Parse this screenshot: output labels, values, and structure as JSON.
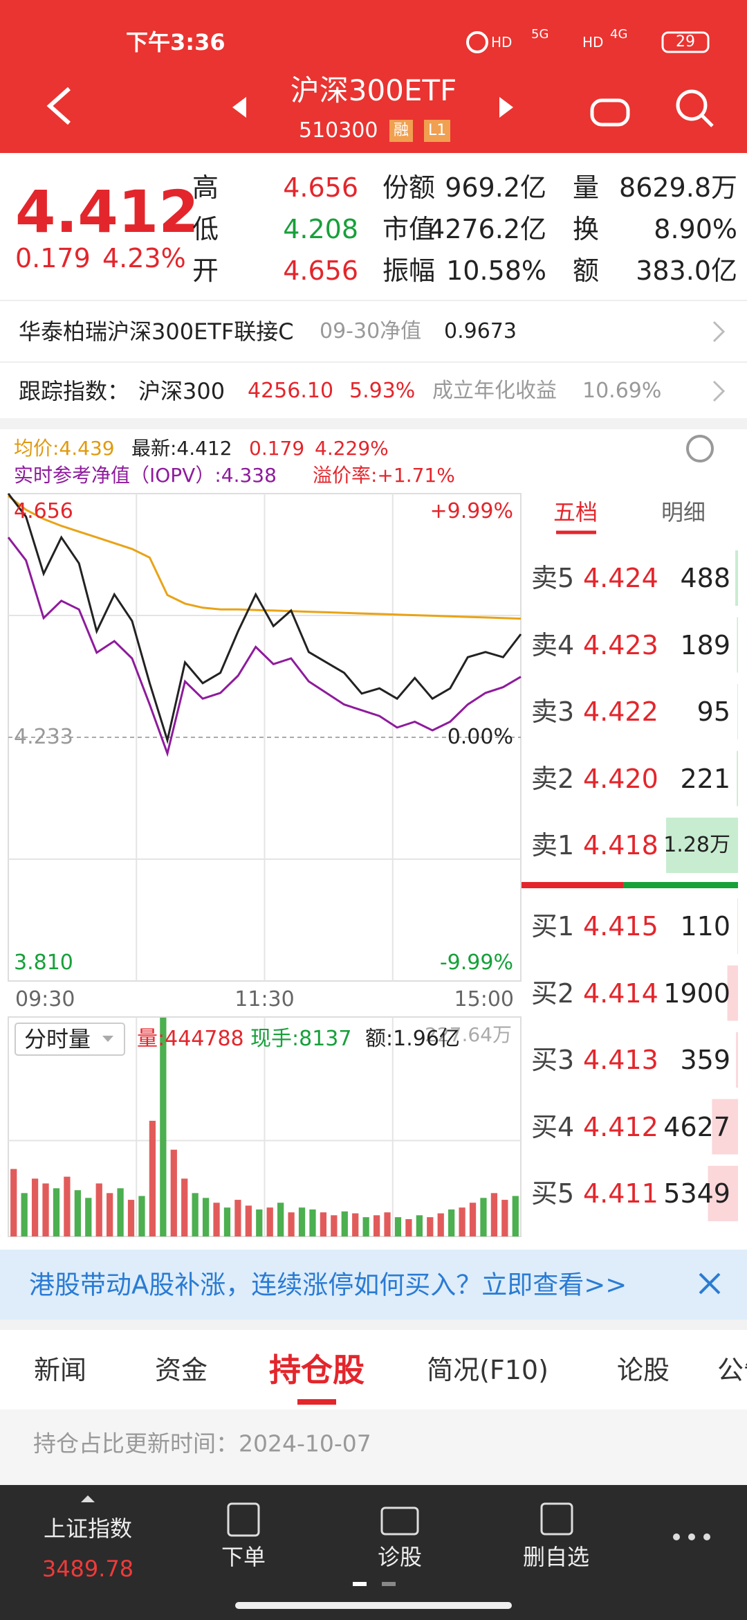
{
  "status_bar": {
    "time": "下午3:36",
    "hd": "HD",
    "net1": "5G",
    "net2": "4G",
    "battery": "29"
  },
  "header": {
    "title": "沪深300ETF",
    "code": "510300",
    "badges": [
      "融",
      "L1"
    ]
  },
  "quote": {
    "price": "4.412",
    "change": "0.179",
    "change_pct": "4.23%",
    "stats": [
      [
        {
          "label": "高",
          "value": "4.656",
          "color": "#e3262c"
        },
        {
          "label": "份额",
          "value": "969.2亿"
        },
        {
          "label": "量",
          "value": "8629.8万"
        }
      ],
      [
        {
          "label": "低",
          "value": "4.208",
          "color": "#17a03a"
        },
        {
          "label": "市值",
          "value": "4276.2亿"
        },
        {
          "label": "换",
          "value": "8.90%"
        }
      ],
      [
        {
          "label": "开",
          "value": "4.656",
          "color": "#e3262c"
        },
        {
          "label": "振幅",
          "value": "10.58%"
        },
        {
          "label": "额",
          "value": "383.0亿"
        }
      ]
    ]
  },
  "fund_row": {
    "name": "华泰柏瑞沪深300ETF联接C",
    "nav_label": "09-30净值",
    "nav": "0.9673"
  },
  "tracking_row": {
    "label": "跟踪指数：",
    "index": "沪深300",
    "index_value": "4256.10",
    "index_change": "5.93%",
    "annual_label": "成立年化收益",
    "annual": "10.69%"
  },
  "chart_info": {
    "avg": "均价:4.439",
    "latest": "最新:4.412",
    "change": "0.179",
    "pct": "4.229%",
    "iopv": "实时参考净值（IOPV）:4.338",
    "premium": "溢价率:+1.71%"
  },
  "chart_data": [
    {
      "type": "line",
      "ylim": [
        3.81,
        4.656
      ],
      "yticks": [
        4.656,
        4.233,
        {
          "value": 3.81,
          "label": "3.810"
        }
      ],
      "y2lim": [
        -9.99,
        9.99
      ],
      "y2ticks": [
        {
          "value": 9.99,
          "label": "+9.99%"
        },
        {
          "value": 0,
          "label": "0.00%"
        },
        {
          "value": -9.99,
          "label": "-9.99%"
        }
      ],
      "xtick_labels": [
        "09:30",
        "11:30",
        "15:00"
      ],
      "series": [
        {
          "color": "#e8a317",
          "values": [
            4.652,
            4.628,
            4.612,
            4.6,
            4.59,
            4.58,
            4.57,
            4.56,
            4.545,
            4.48,
            4.465,
            4.458,
            4.455,
            4.455,
            4.454,
            4.453,
            4.452,
            4.451,
            4.45,
            4.449,
            4.448,
            4.447,
            4.446,
            4.445,
            4.444,
            4.443,
            4.442,
            4.441,
            4.44,
            4.439
          ]
        },
        {
          "color": "#8e1b9c",
          "values": [
            4.58,
            4.54,
            4.44,
            4.47,
            4.455,
            4.38,
            4.4,
            4.37,
            4.29,
            4.205,
            4.33,
            4.3,
            4.31,
            4.34,
            4.39,
            4.36,
            4.37,
            4.33,
            4.31,
            4.29,
            4.28,
            4.27,
            4.25,
            4.26,
            4.245,
            4.26,
            4.29,
            4.31,
            4.32,
            4.338
          ]
        },
        {
          "color": "#222222",
          "values": [
            4.656,
            4.616,
            4.517,
            4.58,
            4.535,
            4.417,
            4.481,
            4.435,
            4.327,
            4.228,
            4.363,
            4.327,
            4.345,
            4.417,
            4.481,
            4.426,
            4.453,
            4.381,
            4.363,
            4.345,
            4.309,
            4.318,
            4.3,
            4.336,
            4.3,
            4.318,
            4.372,
            4.381,
            4.372,
            4.412
          ]
        }
      ]
    },
    {
      "type": "bar",
      "selector": "分时量",
      "volume": "量:444788",
      "hand": "现手:8137",
      "amount": "额:1.96亿",
      "ylim": [
        0,
        227.64
      ],
      "yticks": [
        {
          "value": 227.64,
          "label": "227.64万"
        }
      ],
      "values": [
        70,
        45,
        60,
        55,
        50,
        62,
        48,
        40,
        55,
        45,
        50,
        38,
        42,
        120,
        227,
        90,
        60,
        45,
        40,
        35,
        30,
        38,
        32,
        28,
        30,
        35,
        25,
        30,
        28,
        25,
        22,
        26,
        24,
        20,
        22,
        25,
        20,
        18,
        22,
        20,
        24,
        28,
        30,
        35,
        40,
        45,
        38,
        42
      ],
      "colors": [
        "#e25b5b",
        "#4caf50",
        "#e25b5b",
        "#e25b5b",
        "#4caf50",
        "#e25b5b",
        "#4caf50",
        "#4caf50",
        "#e25b5b",
        "#e25b5b",
        "#4caf50",
        "#e25b5b",
        "#4caf50",
        "#e25b5b",
        "#4caf50",
        "#e25b5b",
        "#e25b5b",
        "#4caf50",
        "#4caf50",
        "#e25b5b",
        "#4caf50",
        "#e25b5b",
        "#e25b5b",
        "#4caf50",
        "#e25b5b",
        "#4caf50",
        "#e25b5b",
        "#4caf50",
        "#4caf50",
        "#e25b5b",
        "#e25b5b",
        "#4caf50",
        "#e25b5b",
        "#4caf50",
        "#e25b5b",
        "#e25b5b",
        "#4caf50",
        "#e25b5b",
        "#4caf50",
        "#e25b5b",
        "#e25b5b",
        "#4caf50",
        "#e25b5b",
        "#e25b5b",
        "#4caf50",
        "#e25b5b",
        "#e25b5b",
        "#4caf50"
      ]
    }
  ],
  "order_book": {
    "tabs": [
      "五档",
      "明细"
    ],
    "asks": [
      {
        "label": "卖5",
        "price": "4.424",
        "volume": 488
      },
      {
        "label": "卖4",
        "price": "4.423",
        "volume": 189
      },
      {
        "label": "卖3",
        "price": "4.422",
        "volume": 95
      },
      {
        "label": "卖2",
        "price": "4.420",
        "volume": 221
      },
      {
        "label": "卖1",
        "price": "4.418",
        "volume": 12800,
        "volume_label": "1.28万"
      }
    ],
    "bids": [
      {
        "label": "买1",
        "price": "4.415",
        "volume": 110
      },
      {
        "label": "买2",
        "price": "4.414",
        "volume": 1900
      },
      {
        "label": "买3",
        "price": "4.413",
        "volume": 359
      },
      {
        "label": "买4",
        "price": "4.412",
        "volume": 4627
      },
      {
        "label": "买5",
        "price": "4.411",
        "volume": 5349
      }
    ]
  },
  "banner": {
    "text": "港股带动A股补涨，连续涨停如何买入？立即查看>>"
  },
  "tabs": [
    "新闻",
    "资金",
    "持仓股",
    "简况(F10)",
    "论股",
    "公告"
  ],
  "update_row": "持仓占比更新时间：2024-10-07",
  "bottom_nav": {
    "index_name": "上证指数",
    "index_value": "3489.78",
    "items": [
      "下单",
      "诊股",
      "删自选"
    ]
  }
}
